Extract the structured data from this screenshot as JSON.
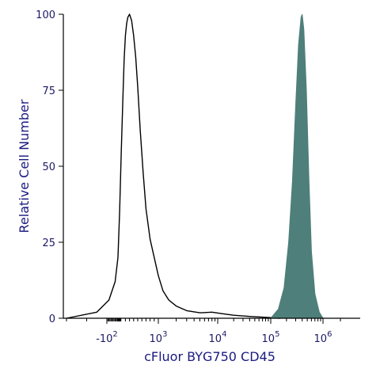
{
  "chart_data": {
    "type": "area",
    "xlabel": "cFluor BYG750 CD45",
    "ylabel": "Relative Cell Number",
    "x_scale": "biexponential",
    "ylim": [
      0,
      100
    ],
    "y_ticks": [
      0,
      25,
      50,
      75,
      100
    ],
    "x_ticks": [
      {
        "value": -100,
        "base": "-10",
        "exp": "2"
      },
      {
        "value": 1000,
        "base": "10",
        "exp": "3"
      },
      {
        "value": 10000,
        "base": "10",
        "exp": "4"
      },
      {
        "value": 100000,
        "base": "10",
        "exp": "5"
      },
      {
        "value": 1000000,
        "base": "10",
        "exp": "6"
      }
    ],
    "grid": false,
    "series": [
      {
        "style": "outline",
        "color": "#000000",
        "points": [
          [
            -300,
            0
          ],
          [
            -150,
            2
          ],
          [
            -80,
            6
          ],
          [
            -20,
            12
          ],
          [
            20,
            20
          ],
          [
            60,
            35
          ],
          [
            100,
            55
          ],
          [
            140,
            73
          ],
          [
            170,
            85
          ],
          [
            200,
            93
          ],
          [
            230,
            97
          ],
          [
            260,
            99
          ],
          [
            300,
            100
          ],
          [
            350,
            98
          ],
          [
            400,
            93
          ],
          [
            450,
            86
          ],
          [
            500,
            76
          ],
          [
            560,
            62
          ],
          [
            630,
            48
          ],
          [
            700,
            36
          ],
          [
            800,
            26
          ],
          [
            900,
            20
          ],
          [
            1000,
            14
          ],
          [
            1200,
            9
          ],
          [
            1500,
            6
          ],
          [
            2000,
            4
          ],
          [
            3000,
            2.5
          ],
          [
            5000,
            1.8
          ],
          [
            8000,
            2
          ],
          [
            12000,
            1.5
          ],
          [
            20000,
            1
          ],
          [
            40000,
            0.6
          ],
          [
            80000,
            0.3
          ],
          [
            150000,
            0
          ]
        ]
      },
      {
        "style": "filled",
        "color": "#4f7f7a",
        "points": [
          [
            100000,
            0
          ],
          [
            140000,
            3
          ],
          [
            180000,
            10
          ],
          [
            220000,
            25
          ],
          [
            260000,
            45
          ],
          [
            300000,
            70
          ],
          [
            340000,
            90
          ],
          [
            380000,
            99
          ],
          [
            400000,
            100
          ],
          [
            430000,
            95
          ],
          [
            480000,
            75
          ],
          [
            540000,
            45
          ],
          [
            600000,
            22
          ],
          [
            700000,
            8
          ],
          [
            850000,
            2
          ],
          [
            1000000,
            0
          ]
        ]
      }
    ]
  }
}
